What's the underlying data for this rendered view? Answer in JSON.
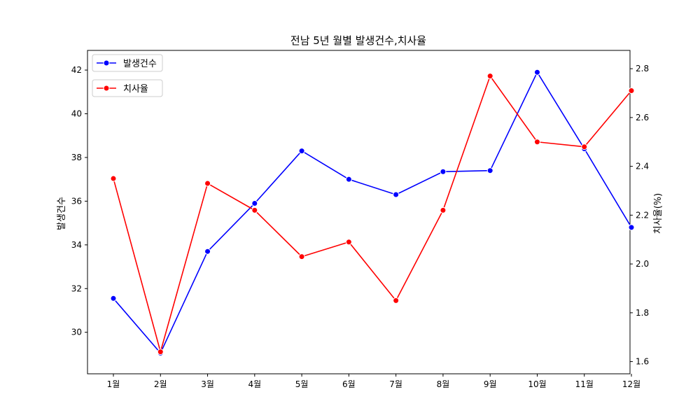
{
  "chart_data": {
    "type": "line",
    "title": "전남 5년 월별 발생건수,치사율",
    "categories": [
      "1월",
      "2월",
      "3월",
      "4월",
      "5월",
      "6월",
      "7월",
      "8월",
      "9월",
      "10월",
      "11월",
      "12월"
    ],
    "series": [
      {
        "name": "발생건수",
        "axis": "left",
        "color": "#0000ff",
        "values": [
          31.55,
          29.05,
          33.7,
          35.9,
          38.3,
          37.0,
          36.3,
          37.35,
          37.4,
          41.9,
          38.4,
          34.8
        ]
      },
      {
        "name": "치사율",
        "axis": "right",
        "color": "#ff0000",
        "values": [
          2.35,
          1.64,
          2.33,
          2.22,
          2.03,
          2.09,
          1.85,
          2.22,
          2.77,
          2.5,
          2.48,
          2.71
        ]
      }
    ],
    "ylabel": "발생건수",
    "ylabel_right": "치사율(%)",
    "ylim": [
      28.1,
      42.9
    ],
    "ylim_right": [
      1.55,
      2.875
    ],
    "yticks": [
      30,
      32,
      34,
      36,
      38,
      40,
      42
    ],
    "yticks_right": [
      1.6,
      1.8,
      2.0,
      2.2,
      2.4,
      2.6,
      2.8
    ],
    "grid": false,
    "legend": [
      "upper-left",
      "upper-left"
    ]
  }
}
